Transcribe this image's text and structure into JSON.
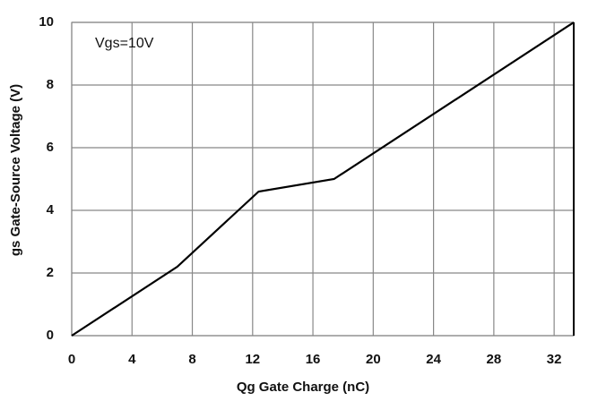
{
  "chart_data": {
    "type": "line",
    "xlabel": "Qg Gate Charge (nC)",
    "ylabel": "gs Gate-Source Voltage (V)",
    "annotation": "Vgs=10V",
    "x": [
      0,
      7,
      12.4,
      17.4,
      33.3
    ],
    "series": [
      {
        "name": "Vgs",
        "color": "#000000",
        "values": [
          0,
          2.2,
          4.6,
          5.0,
          10
        ]
      }
    ],
    "xlim": [
      0,
      33.3
    ],
    "ylim": [
      0,
      10
    ],
    "xticks": [
      0,
      4,
      8,
      12,
      16,
      20,
      24,
      28,
      32
    ],
    "yticks": [
      0,
      2,
      4,
      6,
      8,
      10
    ],
    "grid": true
  }
}
